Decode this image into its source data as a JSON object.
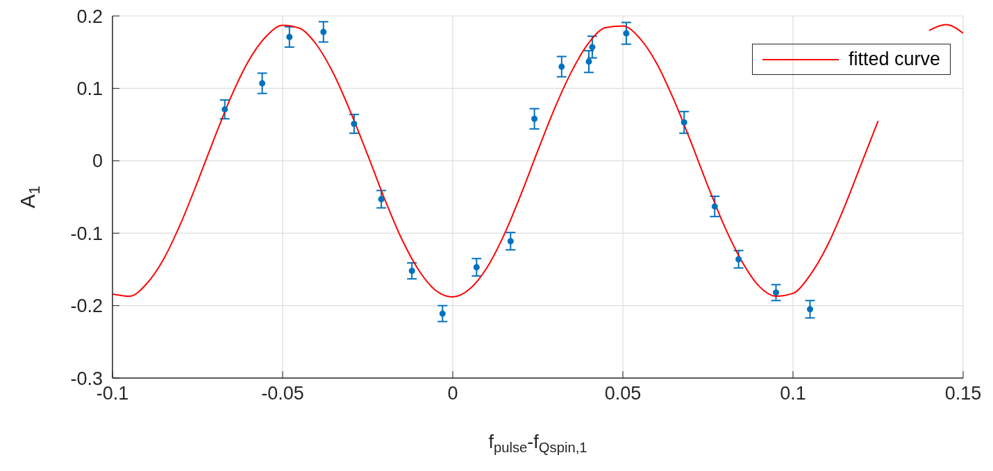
{
  "chart_data": {
    "type": "scatter",
    "xlabel": "f$_{pulse}$-f$_{Qspin,1}$",
    "ylabel": "A$_{1}$",
    "xlim": [
      -0.1,
      0.15
    ],
    "xticks": [
      -0.1,
      -0.05,
      0,
      0.05,
      0.1,
      0.15
    ],
    "ylim": [
      -0.3,
      0.2
    ],
    "yticks": [
      -0.3,
      -0.2,
      -0.1,
      0,
      0.1,
      0.2
    ],
    "grid": true,
    "legend": "top right",
    "marker": "circle",
    "series": [
      {
        "color": "#0072bd",
        "x": [
          -0.067,
          -0.056,
          -0.048,
          -0.038,
          -0.029,
          -0.021,
          -0.012,
          -0.003,
          0.007,
          0.017,
          0.024,
          0.032,
          0.04,
          0.041,
          0.051,
          0.068,
          0.077,
          0.084,
          0.095,
          0.105
        ],
        "values": [
          0.071,
          0.107,
          0.171,
          0.178,
          0.051,
          -0.053,
          -0.152,
          -0.211,
          -0.147,
          -0.111,
          0.058,
          0.13,
          0.137,
          0.157,
          0.176,
          0.053,
          -0.063,
          -0.136,
          -0.182,
          -0.205
        ],
        "errors": [
          0.013,
          0.014,
          0.014,
          0.014,
          0.013,
          0.012,
          0.011,
          0.011,
          0.012,
          0.012,
          0.014,
          0.014,
          0.015,
          0.015,
          0.015,
          0.015,
          0.014,
          0.012,
          0.011,
          0.012
        ]
      },
      {
        "type": "line",
        "name": "fitted curve",
        "color": "#ff0000",
        "marker": "none",
        "line_style": "solid",
        "x": [
          -0.1,
          -0.095,
          -0.09,
          -0.085,
          -0.08,
          -0.075,
          -0.07,
          -0.065,
          -0.06,
          -0.055,
          -0.05,
          -0.045,
          -0.04,
          -0.035,
          -0.03,
          -0.025,
          -0.02,
          -0.015,
          -0.01,
          -0.005,
          0,
          0.005,
          0.01,
          0.015,
          0.02,
          0.025,
          0.03,
          0.035,
          0.04,
          0.045,
          0.05,
          0.055,
          0.06,
          0.065,
          0.07,
          0.075,
          0.08,
          0.085,
          0.09,
          0.095,
          0.1,
          0.105,
          0.11,
          0.115,
          0.12,
          0.125,
          0.13,
          0.135,
          0.14,
          0.145,
          0.15
        ],
        "values": [
          -0.184,
          -0.187,
          -0.17,
          -0.136,
          -0.087,
          -0.029,
          0.032,
          0.09,
          0.138,
          0.171,
          0.187,
          0.183,
          0.16,
          0.12,
          0.067,
          0.008,
          -0.053,
          -0.108,
          -0.151,
          -0.179,
          -0.188,
          -0.177,
          -0.148,
          -0.103,
          -0.047,
          0.014,
          0.073,
          0.124,
          0.163,
          0.184,
          0.186,
          0.169,
          0.134,
          0.084,
          0.026,
          -0.035,
          -0.092,
          -0.139,
          -0.173,
          -0.187,
          -0.183,
          -0.158,
          -0.118,
          -0.065,
          -0.005,
          0.055,
          null,
          null,
          0.18,
          0.188,
          0.176
        ]
      }
    ]
  }
}
